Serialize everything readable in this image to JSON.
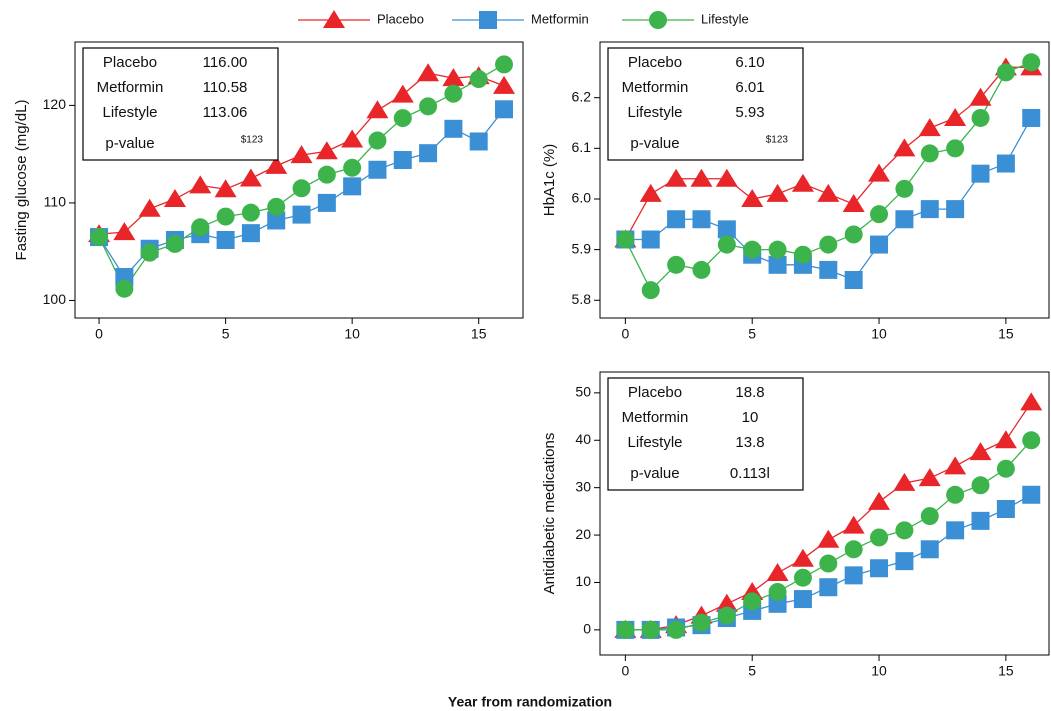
{
  "chart_data": [
    {
      "type": "line",
      "ylabel": "Fasting glucose (mg/dL)",
      "legend": "top",
      "x": [
        0,
        1,
        2,
        3,
        4,
        5,
        6,
        7,
        8,
        9,
        10,
        11,
        12,
        13,
        14,
        15,
        16
      ],
      "xlim": [
        -0.95,
        16.75
      ],
      "xticks": [
        0,
        5,
        10,
        15
      ],
      "ylim": [
        98.2,
        126.5
      ],
      "yticks": [
        100,
        110,
        120
      ],
      "series": [
        {
          "name": "Placebo",
          "color": "#e8262a",
          "marker": "triangle",
          "values": [
            106.8,
            107.0,
            109.4,
            110.4,
            111.8,
            111.4,
            112.5,
            113.8,
            114.9,
            115.3,
            116.5,
            119.5,
            121.1,
            123.3,
            122.8,
            123.0,
            122.0
          ]
        },
        {
          "name": "Metformin",
          "color": "#3b8fd4",
          "marker": "square",
          "values": [
            106.5,
            102.4,
            105.3,
            106.2,
            106.8,
            106.2,
            106.9,
            108.2,
            108.8,
            110.0,
            111.7,
            113.4,
            114.4,
            115.1,
            117.6,
            116.3,
            119.6
          ]
        },
        {
          "name": "Lifestyle",
          "color": "#3cb44b",
          "marker": "circle",
          "values": [
            106.5,
            101.2,
            104.9,
            105.8,
            107.5,
            108.6,
            109.0,
            109.6,
            111.5,
            112.9,
            113.6,
            116.4,
            118.7,
            119.9,
            121.2,
            122.7,
            124.2
          ]
        }
      ],
      "inset": [
        {
          "label": "Placebo",
          "value": "116.00"
        },
        {
          "label": "Metformin",
          "value": "110.58"
        },
        {
          "label": "Lifestyle",
          "value": "113.06"
        },
        {
          "label": "p-value",
          "value": "$123"
        }
      ]
    },
    {
      "type": "line",
      "ylabel": "HbA1c (%)",
      "x": [
        0,
        1,
        2,
        3,
        4,
        5,
        6,
        7,
        8,
        9,
        10,
        11,
        12,
        13,
        14,
        15,
        16
      ],
      "xlim": [
        -1.0,
        16.7
      ],
      "xticks": [
        0,
        5,
        10,
        15
      ],
      "ylim": [
        5.765,
        6.31
      ],
      "yticks": [
        5.8,
        5.9,
        {
          "value": 6,
          "label": "6.0"
        },
        6.1,
        6.2
      ],
      "series": [
        {
          "color": "#e8262a",
          "marker": "triangle",
          "values": [
            5.92,
            6.01,
            6.04,
            6.04,
            6.04,
            6.0,
            6.01,
            6.03,
            6.01,
            5.99,
            6.05,
            6.1,
            6.14,
            6.16,
            6.2,
            6.26,
            6.26
          ]
        },
        {
          "color": "#3b8fd4",
          "marker": "square",
          "values": [
            5.92,
            5.92,
            5.96,
            5.96,
            5.94,
            5.89,
            5.87,
            5.87,
            5.86,
            5.84,
            5.91,
            5.96,
            5.98,
            5.98,
            6.05,
            6.07,
            6.16
          ]
        },
        {
          "color": "#3cb44b",
          "marker": "circle",
          "values": [
            5.92,
            5.82,
            5.87,
            5.86,
            5.91,
            5.9,
            5.9,
            5.89,
            5.91,
            5.93,
            5.97,
            6.02,
            6.09,
            6.1,
            6.16,
            6.25,
            6.27
          ]
        }
      ],
      "inset": [
        {
          "label": "Placebo",
          "value": "6.10"
        },
        {
          "label": "Metformin",
          "value": "6.01"
        },
        {
          "label": "Lifestyle",
          "value": "5.93"
        },
        {
          "label": "p-value",
          "value": "$123"
        }
      ]
    },
    {
      "type": "line",
      "ylabel": "Antidiabetic medications",
      "xlabel": "Year from randomization",
      "x": [
        0,
        1,
        2,
        3,
        4,
        5,
        6,
        7,
        8,
        9,
        10,
        11,
        12,
        13,
        14,
        15,
        16
      ],
      "xlim": [
        -1.0,
        16.7
      ],
      "xticks": [
        0,
        5,
        10,
        15
      ],
      "ylim": [
        -5.3,
        54.4
      ],
      "yticks": [
        0,
        10,
        20,
        30,
        40,
        50
      ],
      "series": [
        {
          "color": "#e8262a",
          "marker": "triangle",
          "values": [
            0,
            0,
            1,
            3,
            5.5,
            8,
            12,
            15,
            19,
            22,
            27,
            31,
            32,
            34.5,
            37.5,
            40,
            48
          ]
        },
        {
          "color": "#3b8fd4",
          "marker": "square",
          "values": [
            0,
            0,
            0.5,
            1,
            2.5,
            4,
            5.5,
            6.5,
            9,
            11.5,
            13,
            14.5,
            17,
            21,
            23,
            25.5,
            28.5
          ]
        },
        {
          "color": "#3cb44b",
          "marker": "circle",
          "values": [
            0,
            0,
            0,
            1.5,
            3,
            6,
            8,
            11,
            14,
            17,
            19.5,
            21,
            24,
            28.5,
            30.5,
            34,
            40
          ]
        }
      ],
      "inset": [
        {
          "label": "Placebo",
          "value": "18.8"
        },
        {
          "label": "Metformin",
          "value": "10"
        },
        {
          "label": "Lifestyle",
          "value": "13.8"
        },
        {
          "label": "p-value",
          "value": "0.113ǀ"
        }
      ]
    }
  ]
}
